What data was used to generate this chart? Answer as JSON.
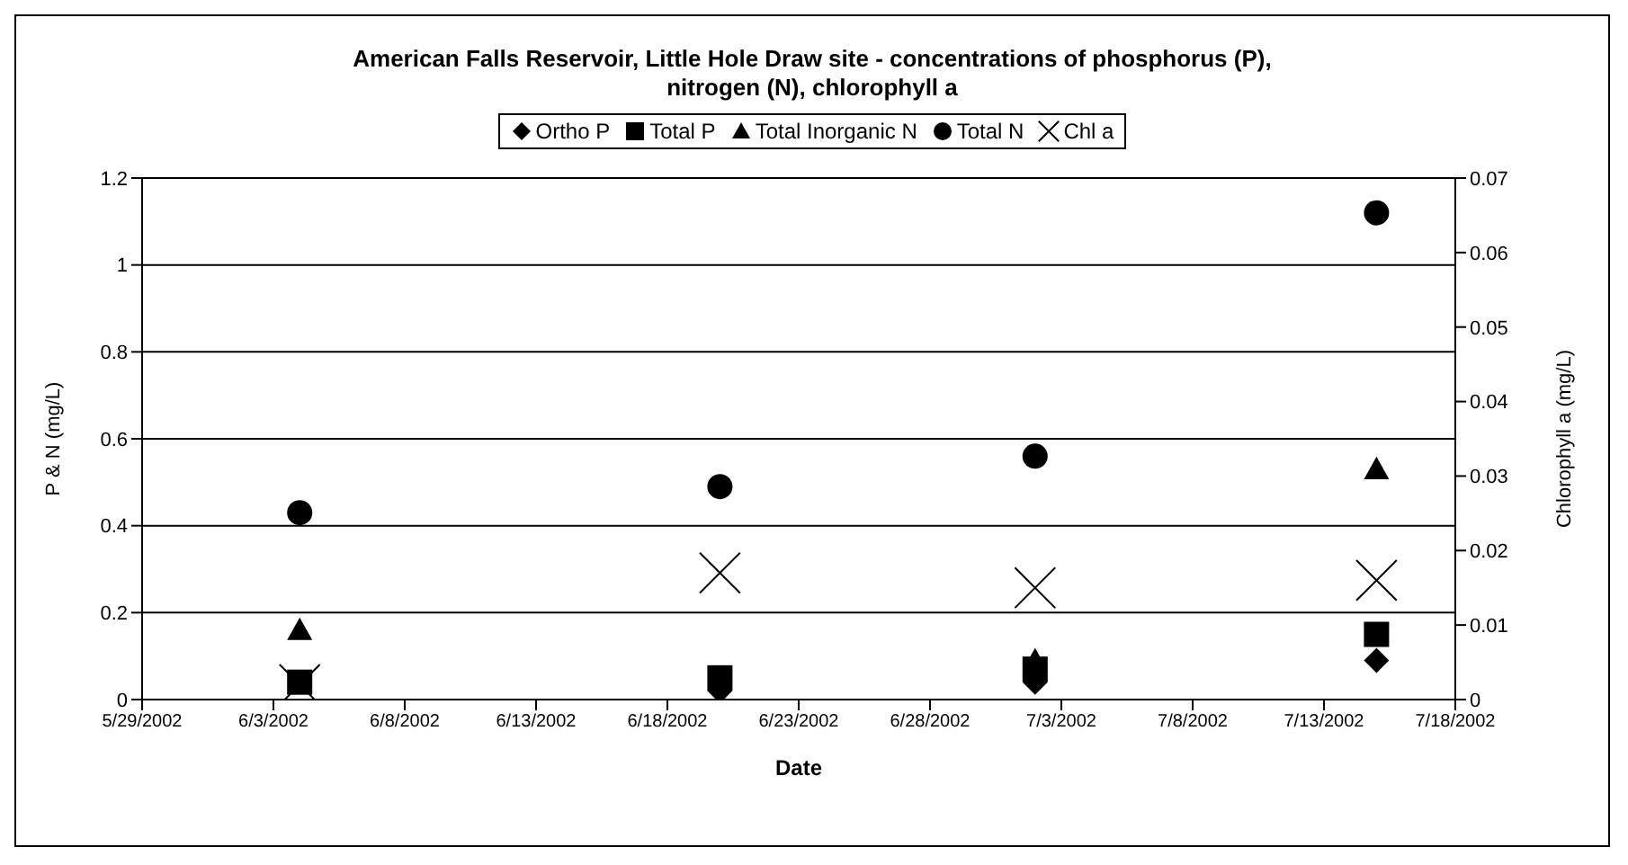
{
  "chart_data": {
    "type": "scatter",
    "title": "American Falls Reservoir, Little Hole Draw site - concentrations of phosphorus (P), nitrogen (N), chlorophyll a",
    "xlabel": "Date",
    "ylabel": "P & N (mg/L)",
    "y2label": "Chlorophyll a (mg/L)",
    "x": [
      "2002-06-04",
      "2002-06-20",
      "2002-07-02",
      "2002-07-15"
    ],
    "series": [
      {
        "name": "Ortho P",
        "color": "#000000",
        "marker": "diamond",
        "values": [
          null,
          0.02,
          0.04,
          0.09
        ]
      },
      {
        "name": "Total P",
        "color": "#000000",
        "marker": "square",
        "values": [
          0.04,
          0.05,
          0.07,
          0.15
        ]
      },
      {
        "name": "Total Inorganic N",
        "color": "#000000",
        "marker": "triangle",
        "values": [
          0.16,
          null,
          0.09,
          0.53
        ]
      },
      {
        "name": "Total N",
        "color": "#000000",
        "marker": "circle",
        "values": [
          0.43,
          0.49,
          0.56,
          1.12
        ]
      },
      {
        "name": "Chl a",
        "color": "#000000",
        "marker": "cross",
        "axis": "y2",
        "values": [
          0.002,
          0.017,
          0.015,
          0.016
        ]
      }
    ],
    "xlim": [
      "2002-05-29",
      "2002-07-18"
    ],
    "xticks": [
      {
        "value": "2002-05-29",
        "label": "5/29/2002"
      },
      {
        "value": "2002-06-03",
        "label": "6/3/2002"
      },
      {
        "value": "2002-06-08",
        "label": "6/8/2002"
      },
      {
        "value": "2002-06-13",
        "label": "6/13/2002"
      },
      {
        "value": "2002-06-18",
        "label": "6/18/2002"
      },
      {
        "value": "2002-06-23",
        "label": "6/23/2002"
      },
      {
        "value": "2002-06-28",
        "label": "6/28/2002"
      },
      {
        "value": "2002-07-03",
        "label": "7/3/2002"
      },
      {
        "value": "2002-07-08",
        "label": "7/8/2002"
      },
      {
        "value": "2002-07-13",
        "label": "7/13/2002"
      },
      {
        "value": "2002-07-18",
        "label": "7/18/2002"
      }
    ],
    "ylim": [
      0,
      1.2
    ],
    "yticks": [
      0,
      0.2,
      0.4,
      0.6,
      0.8,
      1,
      1.2
    ],
    "y2lim": [
      0,
      0.07
    ],
    "y2ticks": [
      0,
      0.01,
      0.02,
      0.03,
      0.04,
      0.05,
      0.06,
      0.07
    ],
    "grid": "y",
    "legend": "top"
  }
}
